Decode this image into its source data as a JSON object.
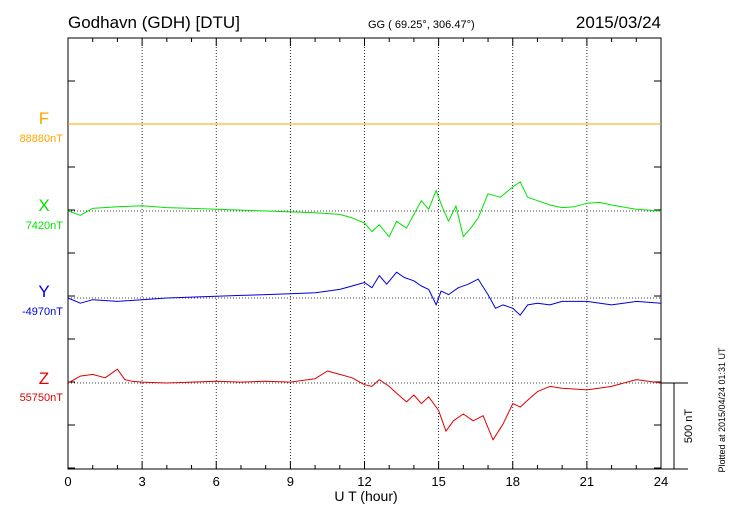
{
  "header": {
    "station": "Godhavn (GDH)  [DTU]",
    "coords": "GG ( 69.25°, 306.47°)",
    "date": "2015/03/24"
  },
  "plotted_note": "Plotted at 2015/04/24 01:31  UT",
  "scale_label": "500 nT",
  "chart_data": {
    "type": "line",
    "title": "",
    "xlabel": "U T (hour)",
    "xlim": [
      0,
      24
    ],
    "xticks": [
      "0",
      "3",
      "6",
      "9",
      "12",
      "15",
      "18",
      "21",
      "24"
    ],
    "grid": true,
    "scale_bar_nT": 500,
    "series": [
      {
        "name": "F",
        "baseline_label": "88880nT",
        "baseline_nT": 88880,
        "color": "#ffa500",
        "x": [
          0,
          6,
          12,
          18,
          24
        ],
        "y": [
          0,
          0,
          0,
          0,
          0
        ]
      },
      {
        "name": "X",
        "baseline_label": "7420nT",
        "baseline_nT": 7420,
        "color": "#00e400",
        "x": [
          0,
          0.5,
          1,
          2,
          3,
          4,
          5,
          6,
          7,
          8,
          9,
          10,
          10.5,
          11,
          11.5,
          12,
          12.3,
          12.6,
          13,
          13.3,
          13.7,
          14,
          14.3,
          14.6,
          14.9,
          15.1,
          15.4,
          15.7,
          16,
          16.3,
          16.6,
          17,
          17.5,
          18,
          18.3,
          18.6,
          19,
          19.5,
          20,
          20.5,
          21,
          21.5,
          22,
          23,
          24
        ],
        "y": [
          0,
          -25,
          15,
          25,
          30,
          20,
          15,
          10,
          5,
          0,
          -5,
          -10,
          -15,
          -20,
          -40,
          -70,
          -120,
          -80,
          -150,
          -60,
          -100,
          -20,
          60,
          10,
          120,
          40,
          -60,
          30,
          -150,
          -100,
          -40,
          100,
          80,
          140,
          170,
          80,
          60,
          35,
          20,
          25,
          45,
          50,
          35,
          10,
          0
        ]
      },
      {
        "name": "Y",
        "baseline_label": "-4970nT",
        "baseline_nT": -4970,
        "color": "#0000e0",
        "x": [
          0,
          0.5,
          1,
          2,
          3,
          4,
          5,
          6,
          7,
          8,
          9,
          10,
          10.5,
          11,
          11.5,
          12,
          12.3,
          12.6,
          12.9,
          13.3,
          13.6,
          14,
          14.3,
          14.6,
          14.9,
          15.1,
          15.4,
          15.8,
          16.2,
          16.6,
          17,
          17.3,
          17.6,
          18,
          18.3,
          18.6,
          19,
          19.5,
          20,
          21,
          22,
          23,
          24
        ],
        "y": [
          0,
          -30,
          -10,
          -20,
          -10,
          0,
          5,
          10,
          15,
          20,
          25,
          30,
          40,
          50,
          70,
          90,
          60,
          130,
          80,
          150,
          120,
          100,
          70,
          50,
          -40,
          40,
          20,
          60,
          80,
          110,
          20,
          -60,
          -40,
          -60,
          -100,
          -40,
          -30,
          -40,
          -20,
          -20,
          -40,
          -20,
          -30
        ]
      },
      {
        "name": "Z",
        "baseline_label": "55750nT",
        "baseline_nT": 55750,
        "color": "#e00000",
        "x": [
          0,
          0.5,
          1,
          1.5,
          2,
          2.3,
          2.6,
          3,
          4,
          5,
          6,
          7,
          8,
          9,
          10,
          10.5,
          11,
          11.5,
          12,
          12.3,
          12.6,
          13,
          13.3,
          13.7,
          14,
          14.3,
          14.6,
          15,
          15.3,
          15.6,
          16,
          16.4,
          16.8,
          17.2,
          17.6,
          18,
          18.3,
          18.6,
          19,
          19.5,
          20,
          21,
          22,
          23,
          24
        ],
        "y": [
          0,
          40,
          50,
          30,
          80,
          20,
          10,
          5,
          0,
          5,
          10,
          5,
          10,
          5,
          25,
          70,
          50,
          30,
          -10,
          -20,
          20,
          -20,
          -60,
          -110,
          -70,
          -120,
          -80,
          -160,
          -280,
          -220,
          -180,
          -220,
          -190,
          -330,
          -240,
          -120,
          -140,
          -100,
          -50,
          -20,
          -30,
          -40,
          -20,
          20,
          0
        ]
      }
    ]
  }
}
